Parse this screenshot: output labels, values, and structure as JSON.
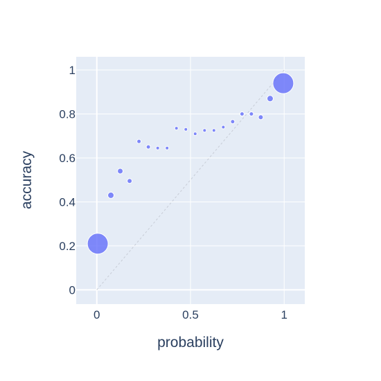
{
  "chart_data": {
    "type": "scatter",
    "title": "",
    "xlabel": "probability",
    "ylabel": "accuracy",
    "xlim": [
      -0.11,
      1.11
    ],
    "ylim": [
      -0.065,
      1.06
    ],
    "x_ticks": [
      0,
      0.5,
      1
    ],
    "x_tick_labels": [
      "0",
      "0.5",
      "1"
    ],
    "y_ticks": [
      0,
      0.2,
      0.4,
      0.6,
      0.8,
      1
    ],
    "y_tick_labels": [
      "0",
      "0.2",
      "0.4",
      "0.6",
      "0.8",
      "1"
    ],
    "grid": true,
    "legend": "none",
    "colors": {
      "plot_background": "#E5ECF6",
      "grid": "#ffffff",
      "marker": "#636EFA",
      "reference_line": "#c7ccd6",
      "text": "#2a3f5f"
    },
    "reference_line": {
      "x": [
        0,
        1
      ],
      "y": [
        0,
        1
      ],
      "style": "dotted"
    },
    "series": [
      {
        "x": [
          0.005,
          0.075,
          0.125,
          0.175,
          0.225,
          0.275,
          0.325,
          0.375,
          0.425,
          0.475,
          0.525,
          0.575,
          0.625,
          0.675,
          0.725,
          0.775,
          0.825,
          0.875,
          0.925,
          0.995
        ],
        "y": [
          0.21,
          0.43,
          0.54,
          0.495,
          0.675,
          0.65,
          0.645,
          0.645,
          0.735,
          0.73,
          0.71,
          0.725,
          0.725,
          0.74,
          0.765,
          0.8,
          0.8,
          0.785,
          0.87,
          0.94
        ],
        "size": [
          30,
          9,
          8,
          7,
          6,
          6,
          5,
          5,
          5,
          5,
          5,
          5,
          5,
          5,
          6,
          6,
          6,
          7,
          9,
          30
        ]
      }
    ]
  }
}
